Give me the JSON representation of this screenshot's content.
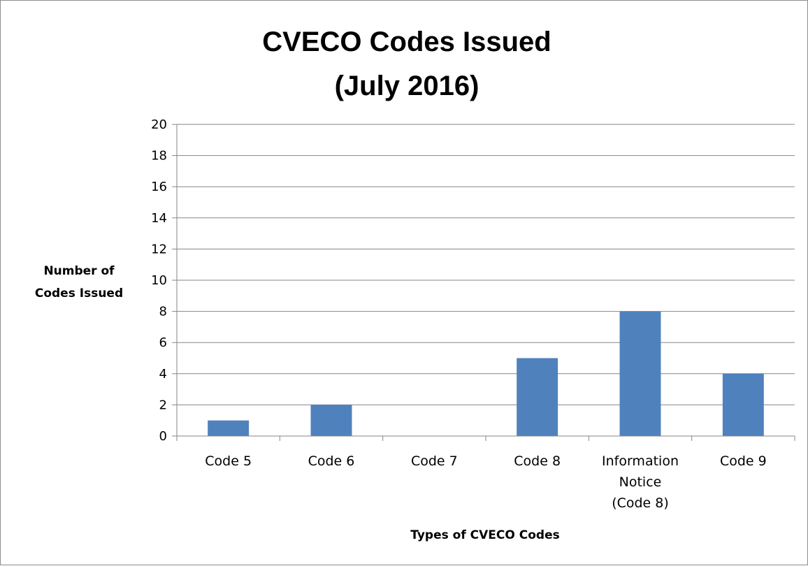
{
  "chart_data": {
    "type": "bar",
    "title": [
      "CVECO Codes Issued",
      "(July 2016)"
    ],
    "ylabel": [
      "Number of",
      "Codes Issued"
    ],
    "xlabel": "Types of CVECO Codes",
    "categories": [
      [
        "Code 5"
      ],
      [
        "Code 6"
      ],
      [
        "Code 7"
      ],
      [
        "Code 8"
      ],
      [
        "Information",
        "Notice",
        "(Code 8)"
      ],
      [
        "Code 9"
      ]
    ],
    "values": [
      1,
      2,
      0,
      5,
      8,
      4
    ],
    "ylim": [
      0,
      20
    ],
    "yticks": [
      "0",
      "2",
      "4",
      "6",
      "8",
      "10",
      "12",
      "14",
      "16",
      "18",
      "20"
    ],
    "grid": true,
    "legend": "none",
    "colors": {
      "bar": "#4f81bd",
      "grid": "#868686",
      "axis": "#868686"
    }
  }
}
